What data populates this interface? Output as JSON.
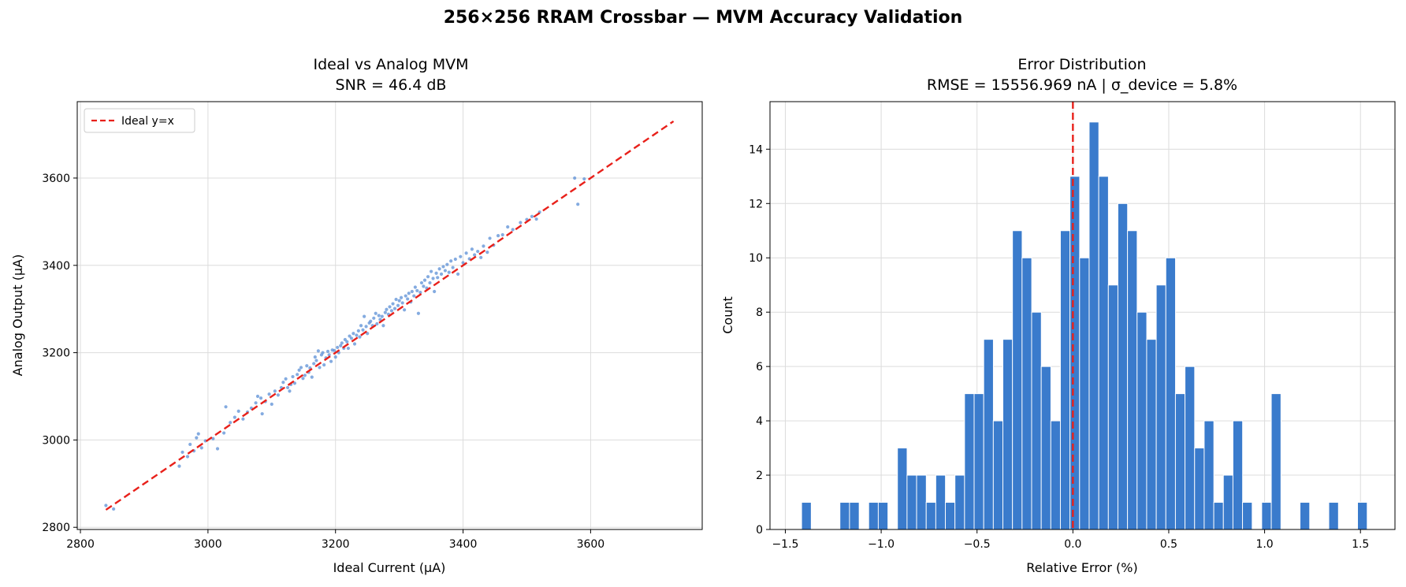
{
  "figure": {
    "suptitle": "256×256 RRAM Crossbar — MVM Accuracy Validation"
  },
  "chart_data": [
    {
      "type": "scatter",
      "title": "Ideal vs Analog MVM",
      "subtitle": "SNR = 46.4 dB",
      "xlabel": "Ideal Current (µA)",
      "ylabel": "Analog Output (µA)",
      "xlim": [
        2795,
        3775
      ],
      "ylim": [
        2795,
        3775
      ],
      "xticks": [
        2800,
        3000,
        3200,
        3400,
        3600
      ],
      "yticks": [
        2800,
        3000,
        3200,
        3400,
        3600
      ],
      "grid": true,
      "legend": {
        "position": "top-left",
        "entries": [
          "Ideal y=x"
        ]
      },
      "reference_line": {
        "name": "Ideal y=x",
        "x": [
          2840,
          3730
        ],
        "y": [
          2840,
          3730
        ],
        "color": "#e8201a",
        "style": "dashed"
      },
      "point_color": "#5b8fd6",
      "points": [
        [
          2840,
          2850
        ],
        [
          2852,
          2842
        ],
        [
          2955,
          2940
        ],
        [
          2960,
          2972
        ],
        [
          2968,
          2962
        ],
        [
          2972,
          2990
        ],
        [
          2978,
          2975
        ],
        [
          2982,
          3005
        ],
        [
          2985,
          3014
        ],
        [
          2990,
          2982
        ],
        [
          2996,
          2998
        ],
        [
          3008,
          3003
        ],
        [
          3015,
          2980
        ],
        [
          3025,
          3016
        ],
        [
          3028,
          3076
        ],
        [
          3035,
          3040
        ],
        [
          3042,
          3052
        ],
        [
          3048,
          3066
        ],
        [
          3055,
          3048
        ],
        [
          3062,
          3064
        ],
        [
          3068,
          3073
        ],
        [
          3075,
          3085
        ],
        [
          3078,
          3100
        ],
        [
          3083,
          3096
        ],
        [
          3085,
          3060
        ],
        [
          3090,
          3088
        ],
        [
          3096,
          3105
        ],
        [
          3100,
          3082
        ],
        [
          3105,
          3112
        ],
        [
          3110,
          3103
        ],
        [
          3115,
          3120
        ],
        [
          3118,
          3132
        ],
        [
          3122,
          3140
        ],
        [
          3125,
          3120
        ],
        [
          3128,
          3112
        ],
        [
          3130,
          3127
        ],
        [
          3133,
          3145
        ],
        [
          3136,
          3130
        ],
        [
          3140,
          3150
        ],
        [
          3143,
          3160
        ],
        [
          3146,
          3166
        ],
        [
          3149,
          3141
        ],
        [
          3152,
          3148
        ],
        [
          3155,
          3170
        ],
        [
          3158,
          3155
        ],
        [
          3160,
          3165
        ],
        [
          3163,
          3144
        ],
        [
          3166,
          3175
        ],
        [
          3168,
          3190
        ],
        [
          3170,
          3182
        ],
        [
          3173,
          3204
        ],
        [
          3175,
          3166
        ],
        [
          3178,
          3195
        ],
        [
          3180,
          3200
        ],
        [
          3182,
          3172
        ],
        [
          3185,
          3188
        ],
        [
          3188,
          3203
        ],
        [
          3190,
          3195
        ],
        [
          3193,
          3180
        ],
        [
          3195,
          3206
        ],
        [
          3198,
          3205
        ],
        [
          3200,
          3190
        ],
        [
          3203,
          3212
        ],
        [
          3205,
          3200
        ],
        [
          3208,
          3216
        ],
        [
          3210,
          3222
        ],
        [
          3213,
          3210
        ],
        [
          3215,
          3230
        ],
        [
          3218,
          3225
        ],
        [
          3220,
          3210
        ],
        [
          3222,
          3238
        ],
        [
          3225,
          3233
        ],
        [
          3228,
          3244
        ],
        [
          3230,
          3220
        ],
        [
          3233,
          3240
        ],
        [
          3236,
          3250
        ],
        [
          3238,
          3236
        ],
        [
          3240,
          3262
        ],
        [
          3243,
          3252
        ],
        [
          3245,
          3283
        ],
        [
          3248,
          3260
        ],
        [
          3250,
          3244
        ],
        [
          3253,
          3268
        ],
        [
          3255,
          3272
        ],
        [
          3258,
          3262
        ],
        [
          3260,
          3279
        ],
        [
          3263,
          3290
        ],
        [
          3265,
          3266
        ],
        [
          3268,
          3285
        ],
        [
          3270,
          3276
        ],
        [
          3273,
          3283
        ],
        [
          3275,
          3262
        ],
        [
          3278,
          3292
        ],
        [
          3280,
          3299
        ],
        [
          3283,
          3288
        ],
        [
          3285,
          3305
        ],
        [
          3288,
          3296
        ],
        [
          3290,
          3312
        ],
        [
          3293,
          3301
        ],
        [
          3295,
          3322
        ],
        [
          3298,
          3308
        ],
        [
          3300,
          3319
        ],
        [
          3303,
          3326
        ],
        [
          3305,
          3314
        ],
        [
          3308,
          3298
        ],
        [
          3310,
          3330
        ],
        [
          3313,
          3323
        ],
        [
          3315,
          3336
        ],
        [
          3318,
          3316
        ],
        [
          3320,
          3340
        ],
        [
          3323,
          3330
        ],
        [
          3325,
          3350
        ],
        [
          3328,
          3342
        ],
        [
          3330,
          3290
        ],
        [
          3333,
          3338
        ],
        [
          3335,
          3360
        ],
        [
          3338,
          3352
        ],
        [
          3340,
          3366
        ],
        [
          3343,
          3348
        ],
        [
          3345,
          3374
        ],
        [
          3348,
          3360
        ],
        [
          3350,
          3386
        ],
        [
          3353,
          3370
        ],
        [
          3355,
          3340
        ],
        [
          3358,
          3382
        ],
        [
          3360,
          3372
        ],
        [
          3363,
          3392
        ],
        [
          3366,
          3380
        ],
        [
          3369,
          3397
        ],
        [
          3372,
          3388
        ],
        [
          3375,
          3402
        ],
        [
          3378,
          3384
        ],
        [
          3381,
          3410
        ],
        [
          3384,
          3395
        ],
        [
          3388,
          3414
        ],
        [
          3392,
          3380
        ],
        [
          3396,
          3420
        ],
        [
          3400,
          3406
        ],
        [
          3405,
          3428
        ],
        [
          3410,
          3415
        ],
        [
          3414,
          3437
        ],
        [
          3418,
          3424
        ],
        [
          3423,
          3432
        ],
        [
          3428,
          3418
        ],
        [
          3432,
          3444
        ],
        [
          3438,
          3430
        ],
        [
          3442,
          3462
        ],
        [
          3448,
          3446
        ],
        [
          3455,
          3468
        ],
        [
          3462,
          3470
        ],
        [
          3470,
          3488
        ],
        [
          3478,
          3482
        ],
        [
          3490,
          3498
        ],
        [
          3500,
          3505
        ],
        [
          3508,
          3512
        ],
        [
          3515,
          3506
        ],
        [
          3520,
          3522
        ],
        [
          3575,
          3600
        ],
        [
          3580,
          3540
        ],
        [
          3590,
          3598
        ]
      ]
    },
    {
      "type": "bar",
      "title": "Error Distribution",
      "subtitle": "RMSE = 15556.969 nA  |  σ_device = 5.8%",
      "xlabel": "Relative Error (%)",
      "ylabel": "Count",
      "xlim": [
        -1.58,
        1.68
      ],
      "ylim": [
        0,
        15.75
      ],
      "xticks": [
        -1.5,
        -1.0,
        -0.5,
        0.0,
        0.5,
        1.0,
        1.5
      ],
      "xtick_labels": [
        "−1.5",
        "−1.0",
        "−0.5",
        "0.0",
        "0.5",
        "1.0",
        "1.5"
      ],
      "yticks": [
        0,
        2,
        4,
        6,
        8,
        10,
        12,
        14
      ],
      "grid": true,
      "bar_color": "#3a7bcc",
      "reference_line": {
        "x": 0.0,
        "color": "#e8201a",
        "style": "dashed"
      },
      "bin_width": 0.0505,
      "bins": [
        {
          "x": -1.39,
          "count": 1
        },
        {
          "x": -1.19,
          "count": 1
        },
        {
          "x": -1.14,
          "count": 1
        },
        {
          "x": -1.04,
          "count": 1
        },
        {
          "x": -0.99,
          "count": 1
        },
        {
          "x": -0.89,
          "count": 3
        },
        {
          "x": -0.84,
          "count": 2
        },
        {
          "x": -0.79,
          "count": 2
        },
        {
          "x": -0.74,
          "count": 1
        },
        {
          "x": -0.69,
          "count": 2
        },
        {
          "x": -0.64,
          "count": 1
        },
        {
          "x": -0.59,
          "count": 2
        },
        {
          "x": -0.54,
          "count": 5
        },
        {
          "x": -0.49,
          "count": 5
        },
        {
          "x": -0.44,
          "count": 7
        },
        {
          "x": -0.39,
          "count": 4
        },
        {
          "x": -0.34,
          "count": 7
        },
        {
          "x": -0.29,
          "count": 11
        },
        {
          "x": -0.24,
          "count": 10
        },
        {
          "x": -0.19,
          "count": 8
        },
        {
          "x": -0.14,
          "count": 6
        },
        {
          "x": -0.09,
          "count": 4
        },
        {
          "x": -0.04,
          "count": 11
        },
        {
          "x": 0.01,
          "count": 13
        },
        {
          "x": 0.06,
          "count": 10
        },
        {
          "x": 0.11,
          "count": 15
        },
        {
          "x": 0.16,
          "count": 13
        },
        {
          "x": 0.21,
          "count": 9
        },
        {
          "x": 0.26,
          "count": 12
        },
        {
          "x": 0.31,
          "count": 11
        },
        {
          "x": 0.36,
          "count": 8
        },
        {
          "x": 0.41,
          "count": 7
        },
        {
          "x": 0.46,
          "count": 9
        },
        {
          "x": 0.51,
          "count": 10
        },
        {
          "x": 0.56,
          "count": 5
        },
        {
          "x": 0.61,
          "count": 6
        },
        {
          "x": 0.66,
          "count": 3
        },
        {
          "x": 0.71,
          "count": 4
        },
        {
          "x": 0.76,
          "count": 1
        },
        {
          "x": 0.81,
          "count": 2
        },
        {
          "x": 0.86,
          "count": 4
        },
        {
          "x": 0.91,
          "count": 1
        },
        {
          "x": 1.01,
          "count": 1
        },
        {
          "x": 1.06,
          "count": 5
        },
        {
          "x": 1.21,
          "count": 1
        },
        {
          "x": 1.36,
          "count": 1
        },
        {
          "x": 1.51,
          "count": 1
        }
      ]
    }
  ]
}
